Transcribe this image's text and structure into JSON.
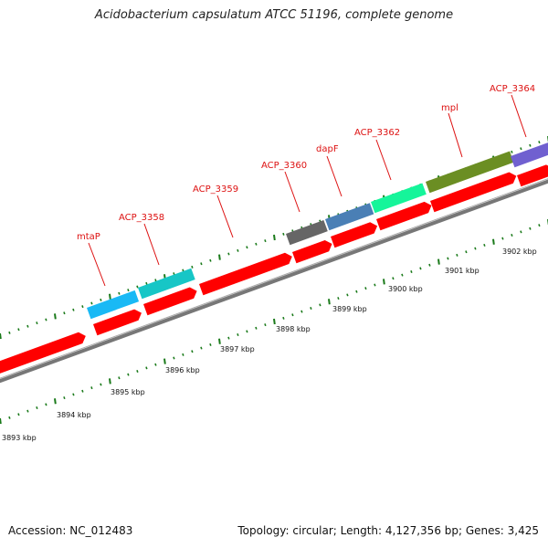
{
  "title": "Acidobacterium capsulatum ATCC 51196, complete genome",
  "footer": {
    "accession": "Accession: NC_012483",
    "summary": "Topology: circular; Length: 4,127,356 bp; Genes: 3,425"
  },
  "genes": [
    {
      "name": "mtaP",
      "color": "#19b9f5"
    },
    {
      "name": "ACP_3358",
      "color": "#17c6c6"
    },
    {
      "name": "ACP_3359",
      "color": "#ff0000"
    },
    {
      "name": "ACP_3360",
      "color": "#666666"
    },
    {
      "name": "dapF",
      "color": "#4a7fb5"
    },
    {
      "name": "ACP_3362",
      "color": "#15f59a"
    },
    {
      "name": "mpl",
      "color": "#6b8e23"
    },
    {
      "name": "ACP_3364",
      "color": "#7060d0"
    }
  ],
  "scale": {
    "unit": "kbp",
    "ticks": [
      "3893 kbp",
      "3894 kbp",
      "3895 kbp",
      "3896 kbp",
      "3897 kbp",
      "3898 kbp",
      "3899 kbp",
      "3900 kbp",
      "3901 kbp",
      "3902 kbp"
    ]
  },
  "colors": {
    "cds": "#ff0000",
    "backbone": "#888888",
    "tick": "#1a7a1a",
    "label": "#dd1111"
  }
}
